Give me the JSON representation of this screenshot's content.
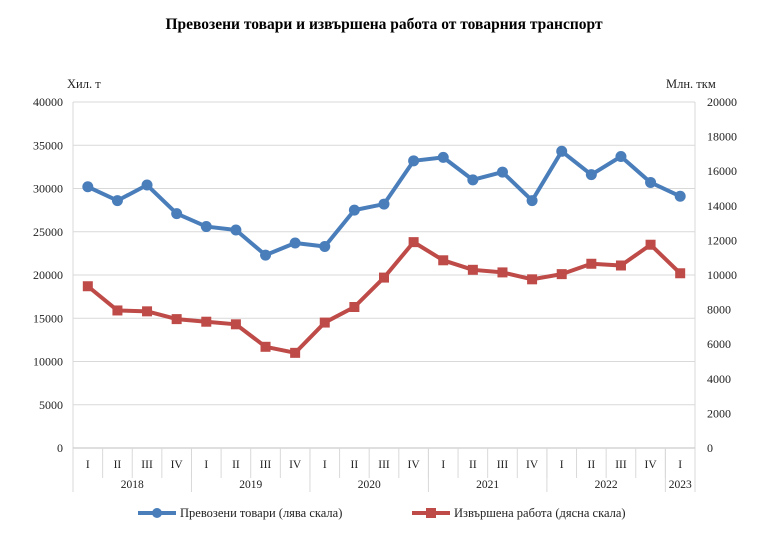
{
  "chart_data": {
    "type": "line",
    "title": "Превозени товари и извършена работа от товарния транспорт",
    "ylabel_left": "Хил. т",
    "ylabel_right": "Млн. ткм",
    "ylim_left": [
      0,
      40000
    ],
    "ylim_right": [
      0,
      20000
    ],
    "yticks_left": [
      "0",
      "5000",
      "10000",
      "15000",
      "20000",
      "25000",
      "30000",
      "35000",
      "40000"
    ],
    "yticks_right": [
      "0",
      "2000",
      "4000",
      "6000",
      "8000",
      "10000",
      "12000",
      "14000",
      "16000",
      "18000",
      "20000"
    ],
    "quarters": [
      "I",
      "II",
      "III",
      "IV",
      "I",
      "II",
      "III",
      "IV",
      "I",
      "II",
      "III",
      "IV",
      "I",
      "II",
      "III",
      "IV",
      "I",
      "II",
      "III",
      "IV",
      "I"
    ],
    "years": [
      {
        "label": "2018",
        "span": 4
      },
      {
        "label": "2019",
        "span": 4
      },
      {
        "label": "2020",
        "span": 4
      },
      {
        "label": "2021",
        "span": 4
      },
      {
        "label": "2022",
        "span": 4
      },
      {
        "label": "2023",
        "span": 1
      }
    ],
    "grid": true,
    "legend_position": "bottom",
    "series": [
      {
        "name": "Превозени  товари (лява скала)",
        "axis": "left",
        "color": "#4a7ebb",
        "marker": "circle",
        "values": [
          30200,
          28600,
          30400,
          27100,
          25600,
          25200,
          22300,
          23700,
          23300,
          27500,
          28200,
          33200,
          33600,
          31000,
          31900,
          28600,
          34300,
          31600,
          33700,
          30700,
          29100
        ]
      },
      {
        "name": "Извършена  работа (дясна скала)",
        "axis": "right",
        "color": "#be4b48",
        "marker": "square",
        "values": [
          9350,
          7950,
          7900,
          7450,
          7300,
          7150,
          5850,
          5500,
          7250,
          8150,
          9850,
          11900,
          10850,
          10300,
          10150,
          9750,
          10050,
          10650,
          10550,
          11750,
          10100
        ]
      }
    ]
  }
}
